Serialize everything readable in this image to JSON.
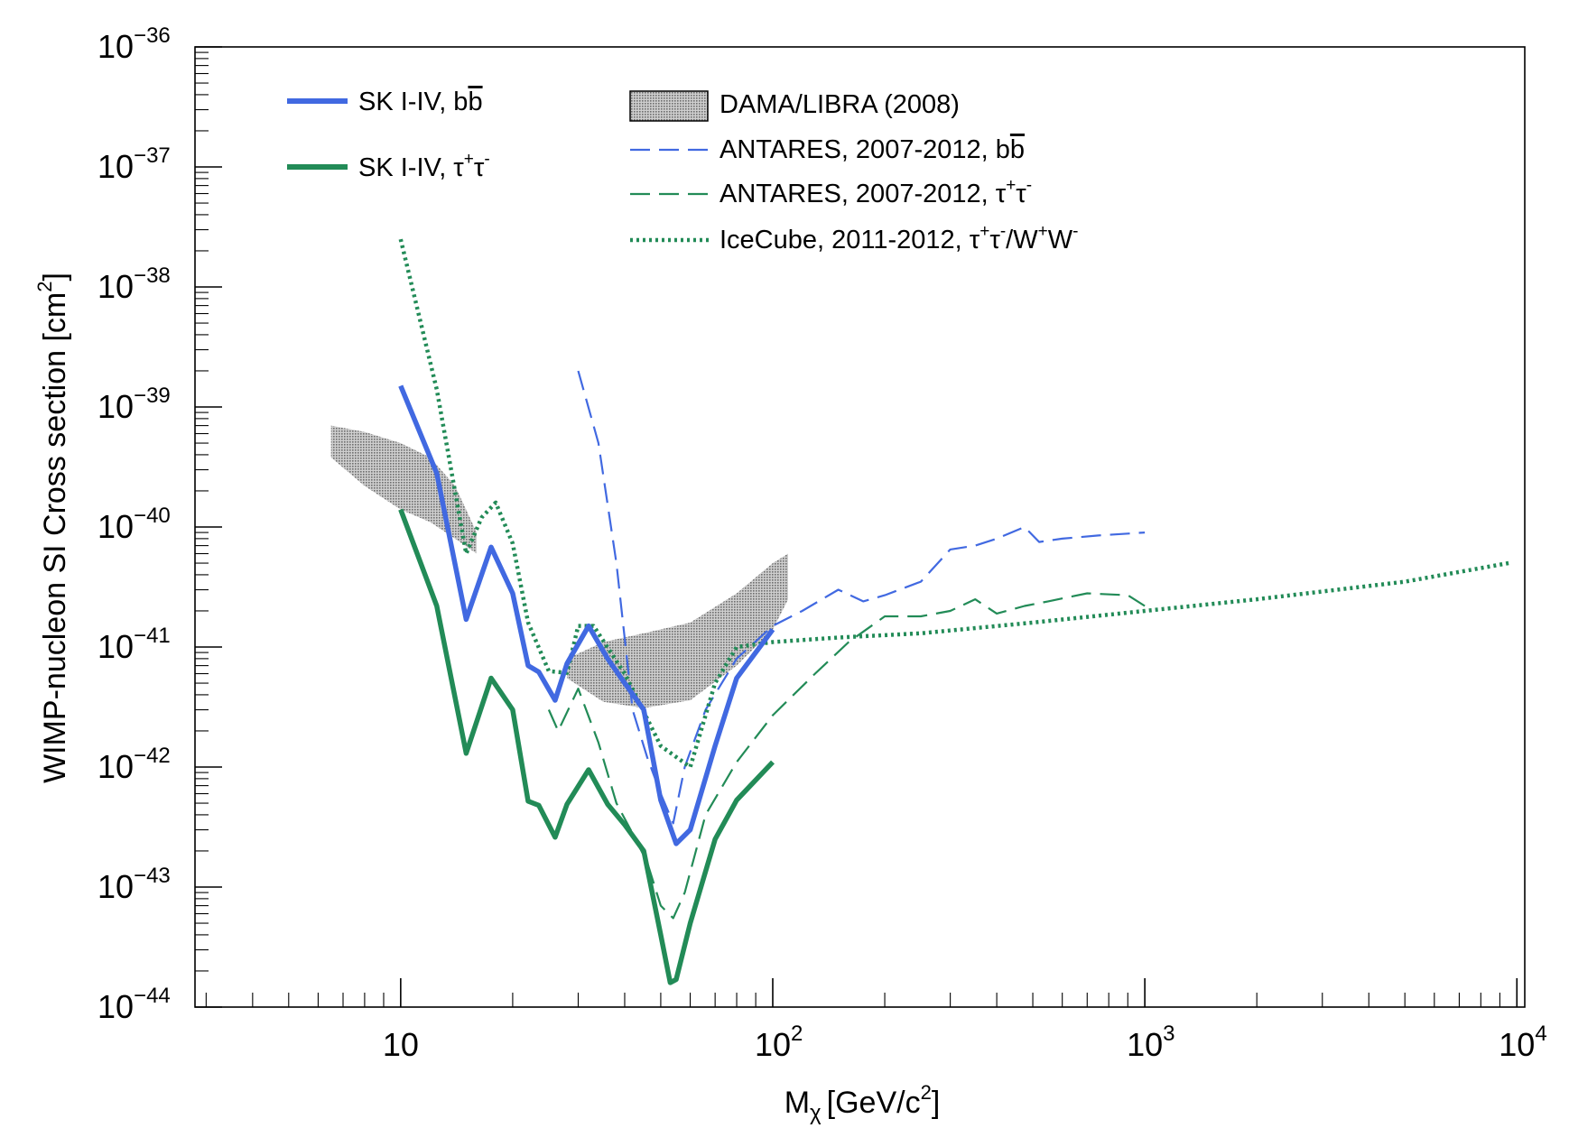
{
  "chart_data": {
    "type": "line",
    "xscale": "log",
    "yscale": "log",
    "xlim": [
      2.8,
      10500
    ],
    "ylim": [
      1e-44,
      1e-36
    ],
    "xlabel": "M",
    "xlabel_sub": "χ",
    "xlabel_unit": "[GeV/c",
    "xlabel_unit_sup": "2",
    "xlabel_unit_close": "]",
    "ylabel": "WIMP-nucleon SI Cross section [cm",
    "ylabel_sup": "2",
    "ylabel_close": "]",
    "x_ticks": [
      {
        "base": "10",
        "exp": ""
      },
      {
        "base": "10",
        "exp": "2"
      },
      {
        "base": "10",
        "exp": "3"
      },
      {
        "base": "10",
        "exp": "4"
      }
    ],
    "y_ticks": [
      {
        "base": "10",
        "exp": "−44"
      },
      {
        "base": "10",
        "exp": "−43"
      },
      {
        "base": "10",
        "exp": "−42"
      },
      {
        "base": "10",
        "exp": "−41"
      },
      {
        "base": "10",
        "exp": "−40"
      },
      {
        "base": "10",
        "exp": "−39"
      },
      {
        "base": "10",
        "exp": "−38"
      },
      {
        "base": "10",
        "exp": "−37"
      },
      {
        "base": "10",
        "exp": "−36"
      }
    ],
    "colors": {
      "blue": "#4169e1",
      "green": "#228b57",
      "band": "#9c9c9c"
    },
    "legend_left": [
      {
        "id": "sk-bb",
        "text": "SK I-IV, b",
        "bar": "b",
        "sup": "",
        "text2": "",
        "sup2": "",
        "text3": ""
      },
      {
        "id": "sk-tautau",
        "text": "SK I-IV, τ",
        "bar": "",
        "sup": "+",
        "text2": "τ",
        "sup2": "-",
        "text3": ""
      }
    ],
    "legend_right": [
      {
        "id": "dama",
        "text": "DAMA/LIBRA (2008)",
        "bar": "",
        "sup": "",
        "text2": "",
        "sup2": "",
        "text3": ""
      },
      {
        "id": "antares-bb",
        "text": "ANTARES, 2007-2012, b",
        "bar": "b",
        "sup": "",
        "text2": "",
        "sup2": "",
        "text3": ""
      },
      {
        "id": "antares-tautau",
        "text": "ANTARES, 2007-2012, τ",
        "bar": "",
        "sup": "+",
        "text2": "τ",
        "sup2": "-",
        "text3": ""
      },
      {
        "id": "icecube",
        "text": "IceCube, 2011-2012, τ",
        "bar": "",
        "sup": "+",
        "text2": "τ",
        "sup2": "-",
        "text3": "/W",
        "sup3": "+",
        "text4": "W",
        "sup4": "-"
      }
    ],
    "series": [
      {
        "name": "SK I-IV, bb̄",
        "style": "solid-blue",
        "x": [
          10,
          12.5,
          15,
          17.5,
          20,
          22,
          23.5,
          26,
          28,
          32,
          36,
          40,
          45,
          50,
          55,
          60,
          70,
          80,
          100
        ],
        "y": [
          1.5e-39,
          2.8e-40,
          1.7e-41,
          6.8e-41,
          2.8e-41,
          7e-42,
          6.2e-42,
          3.6e-42,
          7.3e-42,
          1.5e-41,
          8e-42,
          5e-42,
          3e-42,
          5.3e-43,
          2.3e-43,
          3e-43,
          1.5e-42,
          5.5e-42,
          1.4e-41
        ]
      },
      {
        "name": "SK I-IV, τ+τ-",
        "style": "solid-green",
        "x": [
          10,
          12.5,
          15,
          17.5,
          20,
          22,
          23.5,
          26,
          28,
          32,
          36,
          40,
          45,
          50,
          53,
          55,
          60,
          70,
          80,
          100
        ],
        "y": [
          1.4e-40,
          2.2e-41,
          1.3e-42,
          5.5e-42,
          3e-42,
          5.2e-43,
          4.8e-43,
          2.6e-43,
          4.9e-43,
          9.5e-43,
          4.9e-43,
          3.3e-43,
          2e-43,
          4e-44,
          1.6e-44,
          1.7e-44,
          5e-44,
          2.5e-43,
          5.3e-43,
          1.1e-42
        ]
      },
      {
        "name": "ANTARES, 2007-2012, bb̄",
        "style": "dashed-blue",
        "x": [
          30,
          34,
          38,
          42,
          46,
          50,
          54,
          58,
          66,
          80,
          100,
          120,
          150,
          175,
          200,
          250,
          300,
          350,
          400,
          475,
          520,
          600,
          750,
          1000
        ],
        "y": [
          2e-39,
          5e-40,
          5e-41,
          3e-42,
          1.2e-42,
          6e-43,
          3.4e-43,
          1e-42,
          3e-42,
          8e-42,
          1.5e-41,
          2e-41,
          3e-41,
          2.4e-41,
          2.7e-41,
          3.5e-41,
          6.5e-41,
          7e-41,
          8e-41,
          1e-40,
          7.5e-41,
          8e-41,
          8.5e-41,
          9e-41
        ]
      },
      {
        "name": "ANTARES, 2007-2012, τ+τ-",
        "style": "dashed-green",
        "x": [
          25,
          26.5,
          30,
          34,
          38,
          42,
          46,
          50,
          54,
          58,
          66,
          80,
          100,
          130,
          160,
          200,
          250,
          300,
          350,
          400,
          475,
          550,
          700,
          900,
          1000
        ],
        "y": [
          3e-42,
          2e-42,
          4.5e-42,
          1.6e-42,
          5e-43,
          2.8e-43,
          1.6e-43,
          7e-44,
          5.5e-44,
          9e-44,
          4e-43,
          1.1e-42,
          2.7e-42,
          6e-42,
          1.1e-41,
          1.8e-41,
          1.8e-41,
          2e-41,
          2.5e-41,
          1.9e-41,
          2.2e-41,
          2.4e-41,
          2.8e-41,
          2.7e-41,
          2.2e-41
        ]
      },
      {
        "name": "IceCube, 2011-2012, τ+τ-/W+W-",
        "style": "dotted-green",
        "x": [
          10,
          12.5,
          15,
          16.5,
          18,
          20,
          22,
          25,
          28,
          30,
          33,
          40,
          50,
          60,
          70,
          80,
          100,
          150,
          250,
          500,
          1000,
          2000,
          5000,
          9500
        ],
        "y": [
          2.5e-38,
          1.4e-39,
          6e-41,
          1.2e-40,
          1.6e-40,
          7.3e-41,
          1.6e-41,
          6.3e-42,
          6.1e-42,
          1.5e-41,
          1.5e-41,
          6e-42,
          1.5e-42,
          1e-42,
          5e-42,
          1e-41,
          1.1e-41,
          1.2e-41,
          1.3e-41,
          1.6e-41,
          2e-41,
          2.5e-41,
          3.5e-41,
          5e-41
        ]
      }
    ],
    "bands": [
      {
        "name": "DAMA/LIBRA (2008) low mass",
        "upper": [
          [
            6.5,
            7e-40
          ],
          [
            8,
            6.2e-40
          ],
          [
            10,
            5e-40
          ],
          [
            12,
            3.8e-40
          ],
          [
            14,
            2.2e-40
          ],
          [
            16,
            9e-41
          ]
        ],
        "lower": [
          [
            6.5,
            3.8e-40
          ],
          [
            8,
            2.2e-40
          ],
          [
            10,
            1.4e-40
          ],
          [
            12,
            1.1e-40
          ],
          [
            14,
            8e-41
          ],
          [
            16,
            6e-41
          ]
        ]
      },
      {
        "name": "DAMA/LIBRA (2008) high mass",
        "upper": [
          [
            28,
            8e-42
          ],
          [
            35,
            1.1e-41
          ],
          [
            45,
            1.3e-41
          ],
          [
            60,
            1.6e-41
          ],
          [
            80,
            2.8e-41
          ],
          [
            100,
            5e-41
          ],
          [
            110,
            6e-41
          ]
        ],
        "lower": [
          [
            28,
            5.5e-42
          ],
          [
            35,
            3.5e-42
          ],
          [
            45,
            3.1e-42
          ],
          [
            60,
            3.6e-42
          ],
          [
            80,
            7e-42
          ],
          [
            100,
            1.4e-41
          ],
          [
            110,
            2.5e-41
          ]
        ]
      }
    ]
  }
}
